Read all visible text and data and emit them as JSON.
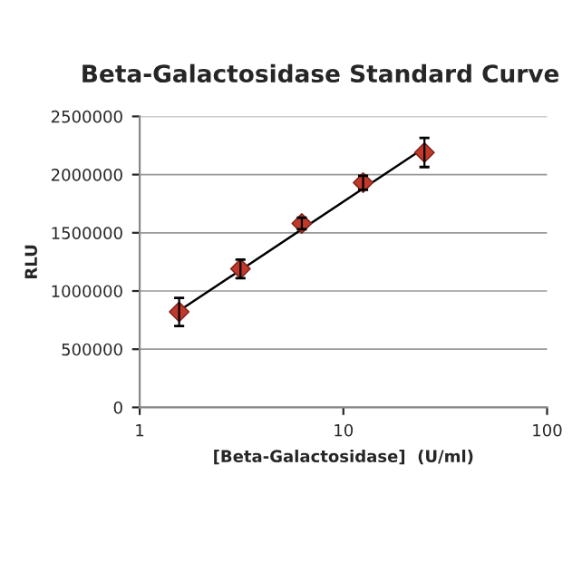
{
  "chart_data": {
    "type": "scatter",
    "title": "Beta-Galactosidase Standard Curve",
    "xlabel": "[Beta-Galactosidase]  (U/ml)",
    "ylabel": "RLU",
    "log": "x",
    "xlim": [
      1,
      100
    ],
    "xticks": [
      1,
      10,
      100
    ],
    "ylim": [
      0,
      2500000
    ],
    "yticks": [
      0,
      500000,
      1000000,
      1500000,
      2000000,
      2500000
    ],
    "grid": "y",
    "series": [
      {
        "type": "line",
        "color": "#000000",
        "x": [
          1.5625,
          25
        ],
        "values": [
          830000,
          2230000
        ]
      },
      {
        "marker": "diamond",
        "color": "#c0392b",
        "x": [
          1.5625,
          3.125,
          6.25,
          12.5,
          25
        ],
        "values": [
          820000,
          1190000,
          1580000,
          1930000,
          2190000
        ],
        "errors": [
          120000,
          80000,
          50000,
          60000,
          125000
        ]
      }
    ]
  }
}
